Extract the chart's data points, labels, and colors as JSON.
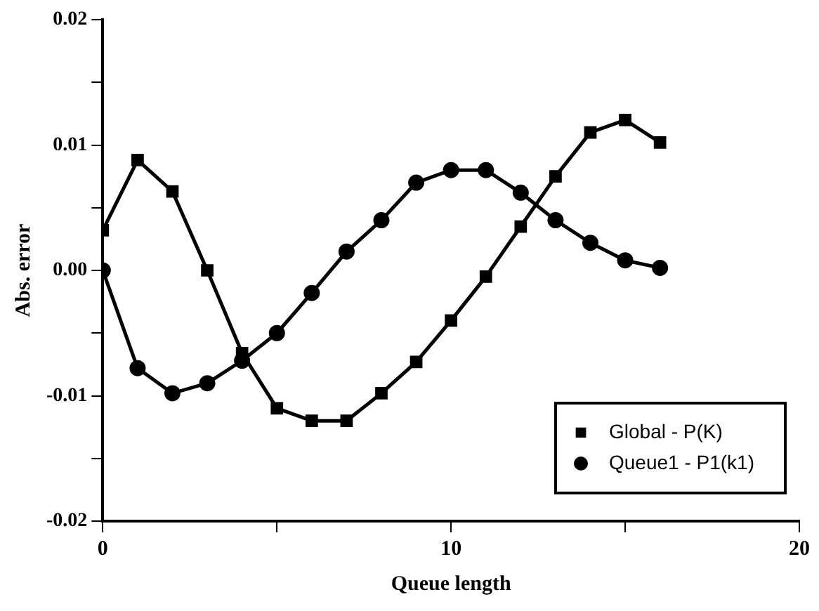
{
  "chart_data": {
    "type": "line",
    "xlabel": "Queue length",
    "ylabel": "Abs. error",
    "x": [
      0,
      1,
      2,
      3,
      4,
      5,
      6,
      7,
      8,
      9,
      10,
      11,
      12,
      13,
      14,
      15,
      16
    ],
    "series": [
      {
        "name": "Global - P(K)",
        "color": "#000000",
        "marker": "square",
        "values": [
          0.0032,
          0.0088,
          0.0063,
          0.0,
          -0.0066,
          -0.011,
          -0.012,
          -0.012,
          -0.0098,
          -0.0073,
          -0.004,
          -0.0005,
          0.0035,
          0.0075,
          0.011,
          0.012,
          0.0102
        ]
      },
      {
        "name": "Queue1 - P1(k1)",
        "color": "#000000",
        "marker": "circle",
        "values": [
          0,
          -0.0078,
          -0.0098,
          -0.009,
          -0.0072,
          -0.005,
          -0.0018,
          0.0015,
          0.004,
          0.007,
          0.008,
          0.008,
          0.0062,
          0.004,
          0.0022,
          0.0008,
          0.0002
        ]
      }
    ],
    "xlim": [
      0,
      20
    ],
    "xticks": [
      0,
      {
        "value": 5,
        "label": null
      },
      10,
      {
        "value": 15,
        "label": null
      },
      20
    ],
    "ylim": [
      -0.02,
      0.02
    ],
    "yticks": [
      {
        "value": -0.02,
        "label": "-0.02"
      },
      {
        "value": -0.015,
        "label": null
      },
      {
        "value": -0.01,
        "label": "-0.01"
      },
      {
        "value": -0.005,
        "label": null
      },
      {
        "value": 0,
        "label": "0.00"
      },
      {
        "value": 0.005,
        "label": null
      },
      {
        "value": 0.01,
        "label": "0.01"
      },
      {
        "value": 0.015,
        "label": null
      },
      {
        "value": 0.02,
        "label": "0.02"
      }
    ],
    "grid": false,
    "legend": "bottom right",
    "line_style": "solid"
  }
}
